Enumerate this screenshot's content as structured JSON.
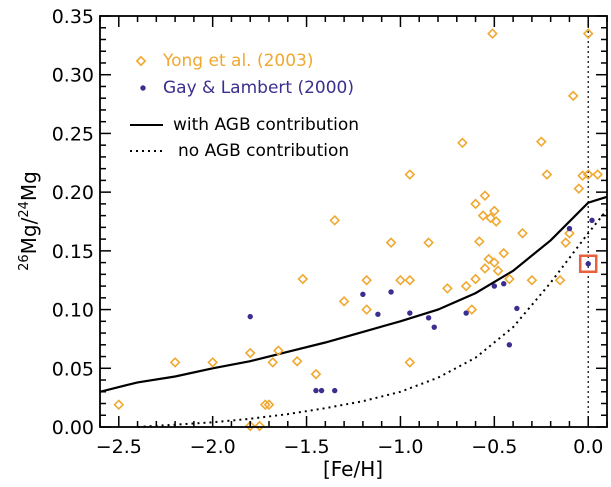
{
  "chart_data": {
    "type": "scatter",
    "xlabel_parts": [
      "[Fe/H]"
    ],
    "ylabel_parts": [
      "26",
      "Mg/",
      "24",
      "Mg"
    ],
    "xlim": [
      -2.6,
      0.1
    ],
    "ylim": [
      0.0,
      0.35
    ],
    "x_ticks": [
      -2.5,
      -2.0,
      -1.5,
      -1.0,
      -0.5,
      0.0
    ],
    "x_tick_labels": [
      "−2.5",
      "−2.0",
      "−1.5",
      "−1.0",
      "−0.5",
      "0.0"
    ],
    "y_ticks": [
      0.0,
      0.05,
      0.1,
      0.15,
      0.2,
      0.25,
      0.3,
      0.35
    ],
    "y_tick_labels": [
      "0.00",
      "0.05",
      "0.10",
      "0.15",
      "0.20",
      "0.25",
      "0.30",
      "0.35"
    ],
    "reference_line_x": 0.0,
    "highlight_point": {
      "x": 0.0,
      "y": 0.139,
      "color": "#e8603c"
    },
    "legend": {
      "placement": "top-left",
      "entries": [
        {
          "label": "Yong et al. (2003)",
          "marker": "diamond",
          "color": "#f0a830"
        },
        {
          "label": "Gay & Lambert (2000)",
          "marker": "dot",
          "color": "#3a2f8f"
        },
        {
          "label": "with AGB contribution",
          "line": "solid",
          "color": "#000000"
        },
        {
          "label": "no AGB contribution",
          "line": "dotted",
          "color": "#000000"
        }
      ]
    },
    "series": [
      {
        "name": "Yong et al. (2003)",
        "marker": "diamond",
        "color": "#f0a830",
        "points": [
          [
            -2.5,
            0.019
          ],
          [
            -2.2,
            0.055
          ],
          [
            -2.0,
            0.055
          ],
          [
            -1.8,
            0.063
          ],
          [
            -1.8,
            0.0
          ],
          [
            -1.75,
            0.0
          ],
          [
            -1.72,
            0.019
          ],
          [
            -1.7,
            0.019
          ],
          [
            -1.68,
            0.055
          ],
          [
            -1.65,
            0.065
          ],
          [
            -1.55,
            0.056
          ],
          [
            -1.52,
            0.126
          ],
          [
            -1.45,
            0.045
          ],
          [
            -1.35,
            0.176
          ],
          [
            -1.3,
            0.107
          ],
          [
            -1.18,
            0.125
          ],
          [
            -1.18,
            0.1
          ],
          [
            -1.05,
            0.157
          ],
          [
            -1.0,
            0.125
          ],
          [
            -0.95,
            0.215
          ],
          [
            -0.95,
            0.125
          ],
          [
            -0.95,
            0.055
          ],
          [
            -0.85,
            0.157
          ],
          [
            -0.75,
            0.118
          ],
          [
            -0.67,
            0.242
          ],
          [
            -0.65,
            0.12
          ],
          [
            -0.62,
            0.1
          ],
          [
            -0.6,
            0.126
          ],
          [
            -0.6,
            0.19
          ],
          [
            -0.58,
            0.158
          ],
          [
            -0.56,
            0.18
          ],
          [
            -0.55,
            0.197
          ],
          [
            -0.55,
            0.135
          ],
          [
            -0.53,
            0.143
          ],
          [
            -0.52,
            0.178
          ],
          [
            -0.51,
            0.335
          ],
          [
            -0.5,
            0.14
          ],
          [
            -0.5,
            0.184
          ],
          [
            -0.49,
            0.175
          ],
          [
            -0.48,
            0.133
          ],
          [
            -0.45,
            0.148
          ],
          [
            -0.42,
            0.126
          ],
          [
            -0.35,
            0.165
          ],
          [
            -0.3,
            0.125
          ],
          [
            -0.25,
            0.243
          ],
          [
            -0.22,
            0.215
          ],
          [
            -0.15,
            0.125
          ],
          [
            -0.12,
            0.157
          ],
          [
            -0.1,
            0.165
          ],
          [
            -0.08,
            0.282
          ],
          [
            -0.05,
            0.203
          ],
          [
            -0.03,
            0.214
          ],
          [
            0.0,
            0.335
          ],
          [
            0.0,
            0.215
          ],
          [
            0.05,
            0.215
          ]
        ]
      },
      {
        "name": "Gay & Lambert (2000)",
        "marker": "dot",
        "color": "#3a2f8f",
        "points": [
          [
            -1.8,
            0.094
          ],
          [
            -1.45,
            0.031
          ],
          [
            -1.42,
            0.031
          ],
          [
            -1.35,
            0.031
          ],
          [
            -1.2,
            0.113
          ],
          [
            -1.12,
            0.096
          ],
          [
            -1.05,
            0.115
          ],
          [
            -0.95,
            0.097
          ],
          [
            -0.85,
            0.093
          ],
          [
            -0.82,
            0.085
          ],
          [
            -0.65,
            0.097
          ],
          [
            -0.5,
            0.12
          ],
          [
            -0.45,
            0.122
          ],
          [
            -0.42,
            0.07
          ],
          [
            -0.38,
            0.101
          ],
          [
            -0.1,
            0.169
          ],
          [
            0.0,
            0.139
          ],
          [
            0.02,
            0.176
          ]
        ]
      }
    ],
    "curves": [
      {
        "name": "with AGB contribution",
        "style": "solid",
        "x": [
          -2.6,
          -2.4,
          -2.2,
          -2.0,
          -1.8,
          -1.6,
          -1.4,
          -1.2,
          -1.0,
          -0.8,
          -0.6,
          -0.4,
          -0.2,
          0.0,
          0.1
        ],
        "y": [
          0.03,
          0.038,
          0.043,
          0.05,
          0.056,
          0.064,
          0.072,
          0.081,
          0.09,
          0.1,
          0.114,
          0.133,
          0.159,
          0.191,
          0.196
        ]
      },
      {
        "name": "no AGB contribution",
        "style": "dotted",
        "x": [
          -2.4,
          -2.2,
          -2.0,
          -1.8,
          -1.6,
          -1.4,
          -1.2,
          -1.0,
          -0.8,
          -0.6,
          -0.4,
          -0.2,
          0.0,
          0.1
        ],
        "y": [
          0.0,
          0.002,
          0.004,
          0.007,
          0.011,
          0.016,
          0.022,
          0.03,
          0.042,
          0.059,
          0.085,
          0.123,
          0.165,
          0.185
        ]
      }
    ]
  }
}
